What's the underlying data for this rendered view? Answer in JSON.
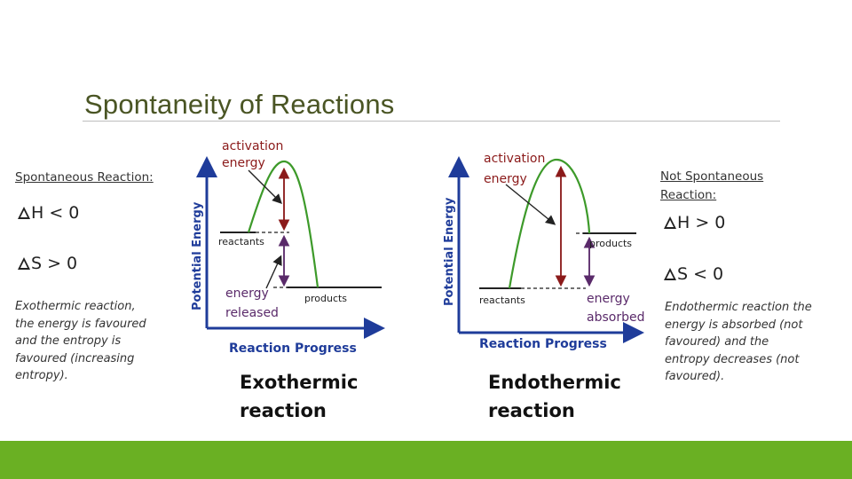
{
  "title": "Spontaneity of Reactions",
  "left": {
    "heading": "Spontaneous Reaction:",
    "dh": "H < 0",
    "ds": "S > 0",
    "desc": [
      "Exothermic reaction,",
      "the energy is favoured",
      "and the entropy is",
      "favoured (increasing",
      "entropy)."
    ]
  },
  "right": {
    "heading": [
      "Not Spontaneous",
      "Reaction:"
    ],
    "dh": "H > 0",
    "ds": "S < 0",
    "desc": [
      "Endothermic reaction the",
      "energy is absorbed (not",
      "favoured) and the",
      "entropy decreases (not",
      "favoured)."
    ]
  },
  "exo": {
    "activation": [
      "activation",
      "energy"
    ],
    "reactants": "reactants",
    "products": "products",
    "released": [
      "energy",
      "released"
    ],
    "yaxis": "Potential Energy",
    "xaxis": "Reaction Progress",
    "caption": [
      "Exothermic",
      "reaction"
    ]
  },
  "endo": {
    "activation": [
      "activation",
      "energy"
    ],
    "reactants": "reactants",
    "products": "products",
    "absorbed": [
      "energy",
      "absorbed"
    ],
    "yaxis": "Potential Energy",
    "xaxis": "Reaction Progress",
    "caption": [
      "Endothermic",
      "reaction"
    ]
  },
  "colors": {
    "accent_bar": "#6ab023",
    "title": "#4a5524",
    "diagram_label": "#8b1a1a",
    "axis_blue": "#1f3c9a",
    "curve_green": "#3d9a2a"
  }
}
